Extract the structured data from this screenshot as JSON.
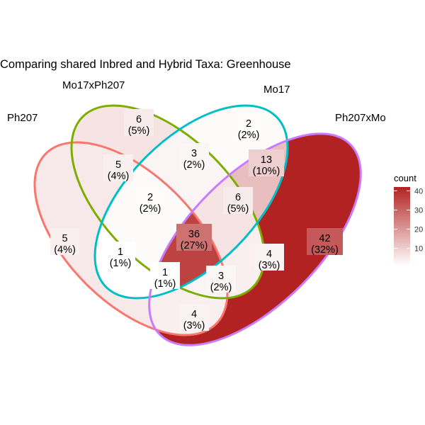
{
  "title": "Comparing shared Inbred and Hybrid Taxa: Greenhouse",
  "sets": [
    {
      "name": "Ph207",
      "stroke": "#f8766d"
    },
    {
      "name": "Mo17xPh207",
      "stroke": "#7cae00"
    },
    {
      "name": "Mo17",
      "stroke": "#00bfc4"
    },
    {
      "name": "Ph207xMo",
      "stroke": "#c77cff"
    }
  ],
  "regions": [
    {
      "id": "ph207-only",
      "count": "5",
      "percent": "(4%)",
      "value": 5
    },
    {
      "id": "mo17xph207-only",
      "count": "6",
      "percent": "(5%)",
      "value": 6
    },
    {
      "id": "mo17-only",
      "count": "2",
      "percent": "(2%)",
      "value": 2
    },
    {
      "id": "ph207xmo-only",
      "count": "42",
      "percent": "(32%)",
      "value": 42
    },
    {
      "id": "ph207-mo17xph207",
      "count": "5",
      "percent": "(4%)",
      "value": 5
    },
    {
      "id": "mo17xph207-mo17",
      "count": "3",
      "percent": "(2%)",
      "value": 3
    },
    {
      "id": "mo17-ph207xmo",
      "count": "13",
      "percent": "(10%)",
      "value": 13
    },
    {
      "id": "ph207-mo17xph207-mo17",
      "count": "2",
      "percent": "(2%)",
      "value": 2
    },
    {
      "id": "mo17xph207-mo17-ph207xmo",
      "count": "6",
      "percent": "(5%)",
      "value": 6
    },
    {
      "id": "all-four",
      "count": "36",
      "percent": "(27%)",
      "value": 36
    },
    {
      "id": "ph207-mo17",
      "count": "1",
      "percent": "(1%)",
      "value": 1
    },
    {
      "id": "ph207-mo17-ph207xmo",
      "count": "1",
      "percent": "(1%)",
      "value": 1
    },
    {
      "id": "ph207-mo17xph207-ph207xmo",
      "count": "3",
      "percent": "(2%)",
      "value": 3
    },
    {
      "id": "mo17xph207-ph207xmo",
      "count": "4",
      "percent": "(3%)",
      "value": 4
    },
    {
      "id": "ph207-ph207xmo",
      "count": "4",
      "percent": "(3%)",
      "value": 4
    }
  ],
  "legend": {
    "title": "count",
    "ticks": [
      "40",
      "30",
      "20",
      "10"
    ],
    "tick_values": [
      40,
      30,
      20,
      10
    ],
    "min": 1,
    "max": 42,
    "low_color": "#ffffff",
    "high_color": "#b22222"
  }
}
